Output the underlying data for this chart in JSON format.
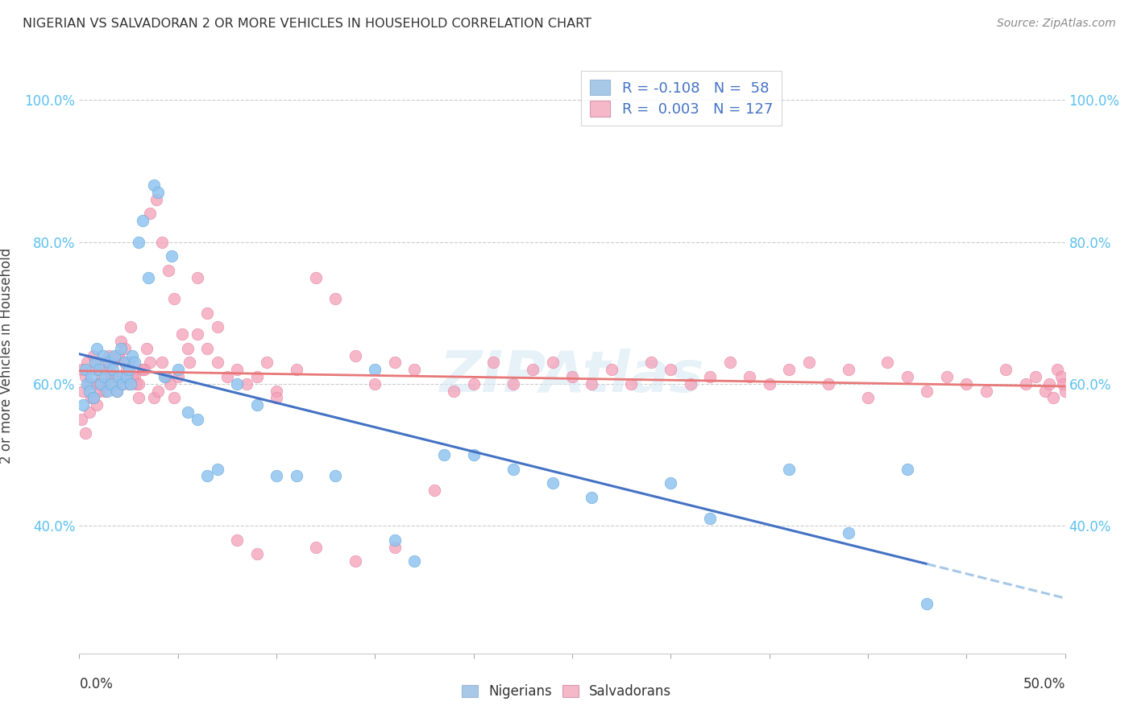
{
  "title": "NIGERIAN VS SALVADORAN 2 OR MORE VEHICLES IN HOUSEHOLD CORRELATION CHART",
  "source": "Source: ZipAtlas.com",
  "ylabel": "2 or more Vehicles in Household",
  "xmin": 0.0,
  "xmax": 0.5,
  "ymin": 0.22,
  "ymax": 1.06,
  "yticks": [
    0.4,
    0.6,
    0.8,
    1.0
  ],
  "nigerian_color": "#92c5f0",
  "nigerian_edge": "#6aaad8",
  "salvadoran_color": "#f4a0b8",
  "salvadoran_edge": "#e080a0",
  "nigerian_line_color": "#4472c4",
  "nigerian_dash_color": "#a8c8e8",
  "salvadoran_line_color": "#e87878",
  "legend_nig_color": "#a8c8e8",
  "legend_sal_color": "#f4b8c8",
  "legend_nig_label": "R = -0.108   N =  58",
  "legend_sal_label": "R =  0.003   N = 127",
  "watermark": "ZIPAtlas",
  "nigerian_x": [
    0.002,
    0.003,
    0.004,
    0.005,
    0.006,
    0.007,
    0.008,
    0.009,
    0.01,
    0.011,
    0.012,
    0.013,
    0.014,
    0.015,
    0.016,
    0.017,
    0.018,
    0.019,
    0.02,
    0.021,
    0.022,
    0.023,
    0.024,
    0.025,
    0.026,
    0.027,
    0.028,
    0.03,
    0.032,
    0.035,
    0.038,
    0.04,
    0.043,
    0.047,
    0.05,
    0.055,
    0.06,
    0.065,
    0.07,
    0.08,
    0.09,
    0.1,
    0.11,
    0.13,
    0.15,
    0.16,
    0.17,
    0.185,
    0.2,
    0.22,
    0.24,
    0.26,
    0.3,
    0.32,
    0.36,
    0.39,
    0.42,
    0.43
  ],
  "nigerian_y": [
    0.57,
    0.62,
    0.6,
    0.59,
    0.61,
    0.58,
    0.63,
    0.65,
    0.62,
    0.6,
    0.64,
    0.61,
    0.59,
    0.63,
    0.6,
    0.62,
    0.64,
    0.59,
    0.61,
    0.65,
    0.6,
    0.63,
    0.61,
    0.62,
    0.6,
    0.64,
    0.63,
    0.8,
    0.83,
    0.75,
    0.88,
    0.87,
    0.61,
    0.78,
    0.62,
    0.56,
    0.55,
    0.47,
    0.48,
    0.6,
    0.57,
    0.47,
    0.47,
    0.47,
    0.62,
    0.38,
    0.35,
    0.5,
    0.5,
    0.48,
    0.46,
    0.44,
    0.46,
    0.41,
    0.48,
    0.39,
    0.48,
    0.29
  ],
  "salvadoran_x": [
    0.001,
    0.002,
    0.003,
    0.004,
    0.005,
    0.006,
    0.007,
    0.008,
    0.009,
    0.01,
    0.011,
    0.012,
    0.013,
    0.014,
    0.015,
    0.016,
    0.017,
    0.018,
    0.019,
    0.02,
    0.021,
    0.022,
    0.023,
    0.024,
    0.025,
    0.026,
    0.027,
    0.028,
    0.029,
    0.03,
    0.032,
    0.034,
    0.036,
    0.038,
    0.04,
    0.042,
    0.044,
    0.046,
    0.048,
    0.05,
    0.055,
    0.06,
    0.065,
    0.07,
    0.075,
    0.08,
    0.085,
    0.09,
    0.095,
    0.1,
    0.11,
    0.12,
    0.13,
    0.14,
    0.15,
    0.16,
    0.17,
    0.18,
    0.19,
    0.2,
    0.21,
    0.22,
    0.23,
    0.24,
    0.25,
    0.26,
    0.27,
    0.28,
    0.29,
    0.3,
    0.31,
    0.32,
    0.33,
    0.34,
    0.35,
    0.36,
    0.37,
    0.38,
    0.39,
    0.4,
    0.41,
    0.42,
    0.43,
    0.44,
    0.45,
    0.46,
    0.47,
    0.48,
    0.485,
    0.49,
    0.492,
    0.494,
    0.496,
    0.498,
    0.499,
    0.5,
    0.001,
    0.003,
    0.005,
    0.007,
    0.009,
    0.011,
    0.013,
    0.015,
    0.017,
    0.019,
    0.021,
    0.023,
    0.025,
    0.027,
    0.03,
    0.033,
    0.036,
    0.039,
    0.042,
    0.045,
    0.048,
    0.052,
    0.056,
    0.06,
    0.065,
    0.07,
    0.08,
    0.09,
    0.1,
    0.12,
    0.14,
    0.16
  ],
  "salvadoran_y": [
    0.62,
    0.59,
    0.61,
    0.63,
    0.6,
    0.58,
    0.64,
    0.62,
    0.6,
    0.59,
    0.63,
    0.61,
    0.6,
    0.62,
    0.64,
    0.61,
    0.63,
    0.6,
    0.59,
    0.64,
    0.61,
    0.6,
    0.63,
    0.62,
    0.6,
    0.68,
    0.63,
    0.61,
    0.6,
    0.58,
    0.62,
    0.65,
    0.63,
    0.58,
    0.59,
    0.63,
    0.61,
    0.6,
    0.58,
    0.61,
    0.65,
    0.67,
    0.65,
    0.63,
    0.61,
    0.62,
    0.6,
    0.61,
    0.63,
    0.59,
    0.62,
    0.75,
    0.72,
    0.64,
    0.6,
    0.63,
    0.62,
    0.45,
    0.59,
    0.6,
    0.63,
    0.6,
    0.62,
    0.63,
    0.61,
    0.6,
    0.62,
    0.6,
    0.63,
    0.62,
    0.6,
    0.61,
    0.63,
    0.61,
    0.6,
    0.62,
    0.63,
    0.6,
    0.62,
    0.58,
    0.63,
    0.61,
    0.59,
    0.61,
    0.6,
    0.59,
    0.62,
    0.6,
    0.61,
    0.59,
    0.6,
    0.58,
    0.62,
    0.61,
    0.6,
    0.59,
    0.55,
    0.53,
    0.56,
    0.58,
    0.57,
    0.6,
    0.59,
    0.62,
    0.61,
    0.64,
    0.66,
    0.65,
    0.63,
    0.61,
    0.6,
    0.62,
    0.84,
    0.86,
    0.8,
    0.76,
    0.72,
    0.67,
    0.63,
    0.75,
    0.7,
    0.68,
    0.38,
    0.36,
    0.58,
    0.37,
    0.35,
    0.37
  ]
}
